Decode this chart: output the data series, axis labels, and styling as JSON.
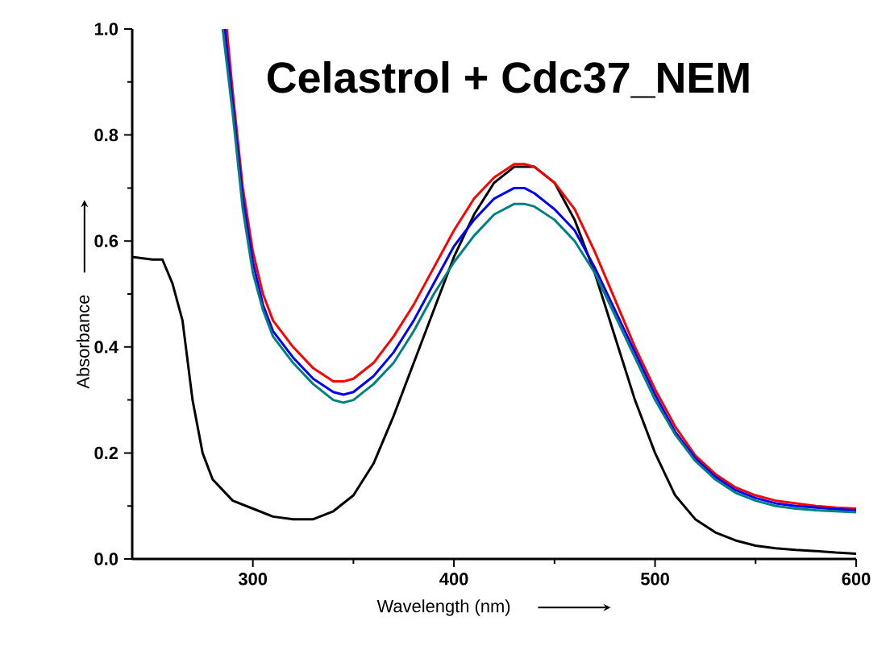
{
  "chart_data": {
    "type": "line",
    "xlabel": "Wavelength (nm)",
    "ylabel": "Absorbance",
    "annotations": [
      "Celastrol + Cdc37_NEM"
    ],
    "xlim": [
      240,
      600
    ],
    "ylim": [
      0,
      1
    ],
    "xticks": [
      300,
      400,
      500,
      600
    ],
    "yticks": [
      {
        "value": 0,
        "label": "0.0"
      },
      0.2,
      0.4,
      0.6,
      0.8,
      {
        "value": 1,
        "label": "1.0"
      }
    ],
    "legend": false,
    "marker": "none",
    "line_style": "solid",
    "series": [
      {
        "color": "#000000",
        "x": [
          240,
          250,
          255,
          260,
          265,
          270,
          275,
          280,
          290,
          300,
          310,
          320,
          330,
          340,
          350,
          360,
          370,
          380,
          390,
          400,
          410,
          420,
          430,
          440,
          450,
          460,
          470,
          480,
          490,
          500,
          510,
          520,
          530,
          540,
          550,
          560,
          570,
          580,
          590,
          600
        ],
        "values": [
          0.57,
          0.565,
          0.565,
          0.52,
          0.45,
          0.3,
          0.2,
          0.15,
          0.11,
          0.095,
          0.08,
          0.075,
          0.075,
          0.09,
          0.12,
          0.18,
          0.27,
          0.37,
          0.47,
          0.57,
          0.65,
          0.71,
          0.74,
          0.74,
          0.71,
          0.64,
          0.54,
          0.42,
          0.3,
          0.2,
          0.12,
          0.075,
          0.05,
          0.035,
          0.025,
          0.02,
          0.017,
          0.015,
          0.012,
          0.01
        ]
      },
      {
        "color": "#ff0000",
        "x": [
          287,
          290,
          295,
          300,
          305,
          310,
          320,
          330,
          340,
          345,
          350,
          360,
          370,
          380,
          390,
          400,
          410,
          420,
          430,
          435,
          440,
          450,
          460,
          470,
          480,
          490,
          500,
          510,
          520,
          530,
          540,
          550,
          560,
          570,
          580,
          590,
          600
        ],
        "values": [
          1.0,
          0.88,
          0.7,
          0.58,
          0.5,
          0.45,
          0.4,
          0.36,
          0.335,
          0.335,
          0.34,
          0.37,
          0.42,
          0.48,
          0.55,
          0.62,
          0.68,
          0.72,
          0.745,
          0.745,
          0.74,
          0.71,
          0.66,
          0.58,
          0.49,
          0.4,
          0.32,
          0.25,
          0.195,
          0.16,
          0.135,
          0.12,
          0.11,
          0.105,
          0.1,
          0.097,
          0.095
        ]
      },
      {
        "color": "#0000ff",
        "x": [
          286,
          290,
          295,
          300,
          305,
          310,
          320,
          330,
          340,
          345,
          350,
          360,
          370,
          380,
          390,
          400,
          410,
          420,
          430,
          435,
          440,
          450,
          460,
          470,
          480,
          490,
          500,
          510,
          520,
          530,
          540,
          550,
          560,
          570,
          580,
          590,
          600
        ],
        "values": [
          1.0,
          0.86,
          0.68,
          0.56,
          0.48,
          0.43,
          0.38,
          0.34,
          0.315,
          0.31,
          0.315,
          0.345,
          0.39,
          0.45,
          0.52,
          0.59,
          0.64,
          0.68,
          0.7,
          0.7,
          0.69,
          0.66,
          0.62,
          0.55,
          0.47,
          0.39,
          0.31,
          0.24,
          0.19,
          0.155,
          0.13,
          0.115,
          0.105,
          0.1,
          0.097,
          0.094,
          0.092
        ]
      },
      {
        "color": "#008080",
        "x": [
          285,
          290,
          295,
          300,
          305,
          310,
          320,
          330,
          340,
          345,
          350,
          360,
          370,
          380,
          390,
          400,
          410,
          420,
          430,
          435,
          440,
          450,
          460,
          470,
          480,
          490,
          500,
          510,
          520,
          530,
          540,
          550,
          560,
          570,
          580,
          590,
          600
        ],
        "values": [
          1.0,
          0.84,
          0.66,
          0.54,
          0.47,
          0.42,
          0.37,
          0.33,
          0.3,
          0.295,
          0.3,
          0.33,
          0.37,
          0.43,
          0.5,
          0.56,
          0.61,
          0.65,
          0.67,
          0.67,
          0.665,
          0.64,
          0.6,
          0.54,
          0.46,
          0.38,
          0.3,
          0.235,
          0.185,
          0.15,
          0.125,
          0.11,
          0.1,
          0.095,
          0.092,
          0.09,
          0.088
        ]
      }
    ]
  }
}
